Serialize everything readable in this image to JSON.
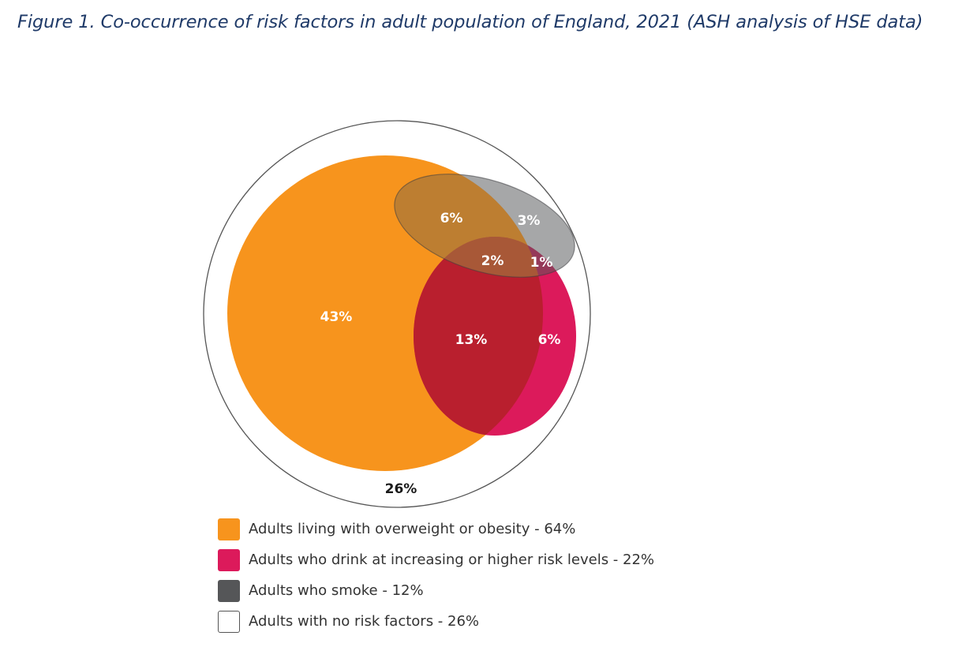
{
  "figure": {
    "title": "Figure 1. Co-occurrence of risk factors in adult population of England, 2021 (ASH analysis of HSE data)"
  },
  "colors": {
    "overweight": "#f7941d",
    "drink": "#dc1a5b",
    "smoke": "#555658",
    "none_fill": "#ffffff",
    "none_border": "#555555",
    "label_light": "#ffffff",
    "label_dark": "#1a1a1a"
  },
  "regions": {
    "overweight_only": "43%",
    "overweight_smoke": "6%",
    "smoke_only": "3%",
    "all_three": "2%",
    "drink_smoke": "1%",
    "overweight_drink": "13%",
    "drink_only": "6%",
    "no_risk_factors": "26%"
  },
  "legend": [
    {
      "label": "Adults living with overweight or obesity - 64%",
      "color": "#f7941d"
    },
    {
      "label": "Adults who drink at increasing or higher risk levels - 22%",
      "color": "#dc1a5b"
    },
    {
      "label": "Adults who smoke - 12%",
      "color": "#555658"
    },
    {
      "label": "Adults with no risk factors - 26%",
      "color": "#ffffff"
    }
  ]
}
